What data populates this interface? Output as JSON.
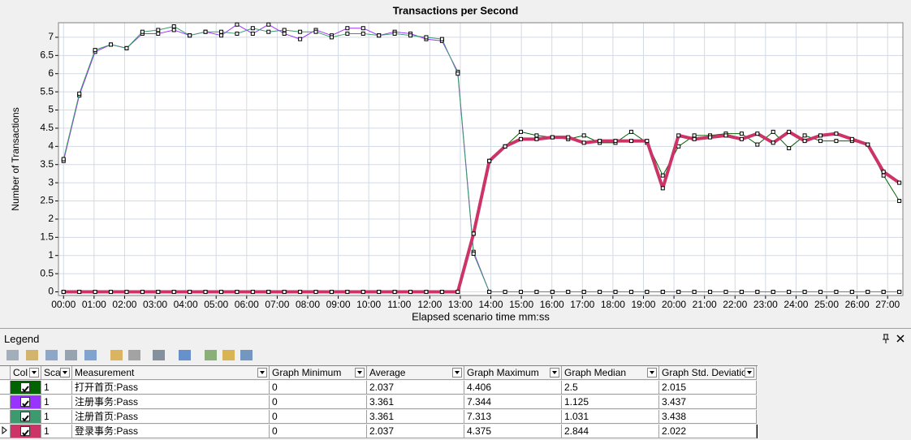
{
  "chart_data": {
    "type": "line",
    "title": "Transactions per Second",
    "x_label": "Elapsed scenario time mm:ss",
    "y_label": "Number of Transactions",
    "x": [
      0,
      31,
      62,
      93,
      124,
      155,
      186,
      217,
      248,
      279,
      310,
      341,
      372,
      403,
      434,
      465,
      496,
      527,
      558,
      589,
      620,
      651,
      682,
      713,
      744,
      775,
      806,
      837,
      868,
      899,
      930,
      961,
      992,
      1023,
      1054,
      1085,
      1116,
      1147,
      1178,
      1209,
      1240,
      1271,
      1302,
      1333,
      1364,
      1395,
      1426,
      1457,
      1488,
      1519,
      1550,
      1581,
      1612,
      1643
    ],
    "xlim": [
      -10,
      1650
    ],
    "xticks": [
      {
        "value": 0,
        "label": "00:00"
      },
      {
        "value": 60,
        "label": "01:00"
      },
      {
        "value": 120,
        "label": "02:00"
      },
      {
        "value": 180,
        "label": "03:00"
      },
      {
        "value": 240,
        "label": "04:00"
      },
      {
        "value": 300,
        "label": "05:00"
      },
      {
        "value": 360,
        "label": "06:00"
      },
      {
        "value": 420,
        "label": "07:00"
      },
      {
        "value": 480,
        "label": "08:00"
      },
      {
        "value": 540,
        "label": "09:00"
      },
      {
        "value": 600,
        "label": "10:00"
      },
      {
        "value": 660,
        "label": "11:00"
      },
      {
        "value": 720,
        "label": "12:00"
      },
      {
        "value": 780,
        "label": "13:00"
      },
      {
        "value": 840,
        "label": "14:00"
      },
      {
        "value": 900,
        "label": "15:00"
      },
      {
        "value": 960,
        "label": "16:00"
      },
      {
        "value": 1020,
        "label": "17:00"
      },
      {
        "value": 1080,
        "label": "18:00"
      },
      {
        "value": 1140,
        "label": "19:00"
      },
      {
        "value": 1200,
        "label": "20:00"
      },
      {
        "value": 1260,
        "label": "21:00"
      },
      {
        "value": 1320,
        "label": "22:00"
      },
      {
        "value": 1380,
        "label": "23:00"
      },
      {
        "value": 1440,
        "label": "24:00"
      },
      {
        "value": 1500,
        "label": "25:00"
      },
      {
        "value": 1560,
        "label": "26:00"
      },
      {
        "value": 1620,
        "label": "27:00"
      }
    ],
    "ylim": [
      -0.1,
      7.4
    ],
    "yticks": [
      0,
      0.5,
      1,
      1.5,
      2,
      2.5,
      3,
      3.5,
      4,
      4.5,
      5,
      5.5,
      6,
      6.5,
      7
    ],
    "grid": true,
    "series": [
      {
        "name": "打开首页:Pass",
        "color": "#006400",
        "width": 1,
        "values": [
          0,
          0,
          0,
          0,
          0,
          0,
          0,
          0,
          0,
          0,
          0,
          0,
          0,
          0,
          0,
          0,
          0,
          0,
          0,
          0,
          0,
          0,
          0,
          0,
          0,
          0,
          1.6,
          3.6,
          4.0,
          4.4,
          4.3,
          4.25,
          4.2,
          4.3,
          4.1,
          4.1,
          4.4,
          4.1,
          3.2,
          4.0,
          4.3,
          4.3,
          4.35,
          4.35,
          4.05,
          4.4,
          3.95,
          4.3,
          4.15,
          4.15,
          4.15,
          4.05,
          3.2,
          2.5
        ]
      },
      {
        "name": "注册事务:Pass",
        "color": "#9933ff",
        "width": 1,
        "values": [
          3.6,
          5.4,
          6.6,
          6.8,
          6.7,
          7.1,
          7.1,
          7.2,
          7.05,
          7.15,
          7.05,
          7.35,
          7.1,
          7.35,
          7.1,
          6.95,
          7.2,
          7.05,
          7.25,
          7.25,
          7.05,
          7.15,
          7.1,
          6.95,
          6.9,
          6.05,
          1.1,
          0,
          0,
          0,
          0,
          0,
          0,
          0,
          0,
          0,
          0,
          0,
          0,
          0,
          0,
          0,
          0,
          0,
          0,
          0,
          0,
          0,
          0,
          0,
          0,
          0,
          0,
          0
        ]
      },
      {
        "name": "注册首页:Pass",
        "color": "#3c9a6e",
        "width": 1,
        "values": [
          3.65,
          5.45,
          6.65,
          6.8,
          6.7,
          7.15,
          7.2,
          7.3,
          7.05,
          7.15,
          7.15,
          7.1,
          7.25,
          7.15,
          7.2,
          7.15,
          7.15,
          7.0,
          7.1,
          7.1,
          7.05,
          7.1,
          7.05,
          7.0,
          6.95,
          6.0,
          1.05,
          0,
          0,
          0,
          0,
          0,
          0,
          0,
          0,
          0,
          0,
          0,
          0,
          0,
          0,
          0,
          0,
          0,
          0,
          0,
          0,
          0,
          0,
          0,
          0,
          0,
          0,
          0
        ]
      },
      {
        "name": "登录事务:Pass",
        "color": "#cc3366",
        "width": 4,
        "values": [
          0,
          0,
          0,
          0,
          0,
          0,
          0,
          0,
          0,
          0,
          0,
          0,
          0,
          0,
          0,
          0,
          0,
          0,
          0,
          0,
          0,
          0,
          0,
          0,
          0,
          0,
          1.6,
          3.6,
          4.0,
          4.2,
          4.2,
          4.25,
          4.25,
          4.1,
          4.15,
          4.15,
          4.15,
          4.15,
          2.85,
          4.3,
          4.2,
          4.25,
          4.3,
          4.2,
          4.35,
          4.1,
          4.4,
          4.15,
          4.3,
          4.35,
          4.2,
          4.05,
          3.3,
          3.0
        ]
      }
    ]
  },
  "legend": {
    "title": "Legend",
    "columns": [
      "Col",
      "Sca",
      "Measurement",
      "Graph Minimum",
      "Average",
      "Graph Maximum",
      "Graph Median",
      "Graph Std. Deviation"
    ],
    "rows": [
      [
        1,
        0,
        2.037,
        4.406,
        2.5,
        2.015
      ],
      [
        1,
        0,
        3.361,
        7.344,
        1.125,
        3.437
      ],
      [
        1,
        0,
        3.361,
        7.313,
        1.031,
        3.438
      ],
      [
        1,
        0,
        2.037,
        4.375,
        2.844,
        2.022
      ]
    ]
  }
}
